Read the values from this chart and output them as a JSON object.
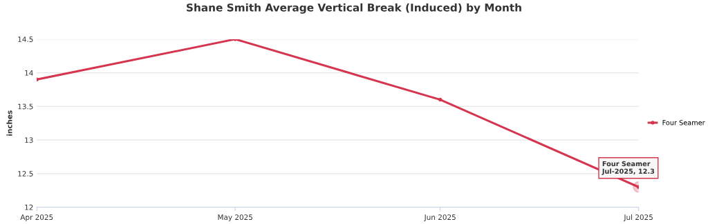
{
  "chart_data": {
    "type": "line",
    "title": "Shane Smith Average Vertical Break (Induced) by Month",
    "ylabel": "inches",
    "x": [
      "2025-04",
      "2025-05",
      "2025-06",
      "2025-07"
    ],
    "series": [
      {
        "name": "Four Seamer",
        "color": "#d6354f",
        "values": [
          13.9,
          14.5,
          13.6,
          12.3
        ]
      }
    ],
    "xlim": [
      "2025-04",
      "2025-07"
    ],
    "xticks": [
      {
        "value": "2025-04",
        "label": "Apr 2025"
      },
      {
        "value": "2025-05",
        "label": "May 2025"
      },
      {
        "value": "2025-06",
        "label": "Jun 2025"
      },
      {
        "value": "2025-07",
        "label": "Jul 2025"
      }
    ],
    "ylim": [
      12,
      14.5
    ],
    "yticks": [
      12,
      12.5,
      13,
      13.5,
      14,
      14.5
    ],
    "grid": "y",
    "legend": "right",
    "marker": "circle",
    "line_style": "solid",
    "annotations": [
      {
        "text": "Four Seamer\nJul-2025, 12.3",
        "x": "2025-07",
        "y": 12.3
      }
    ]
  }
}
